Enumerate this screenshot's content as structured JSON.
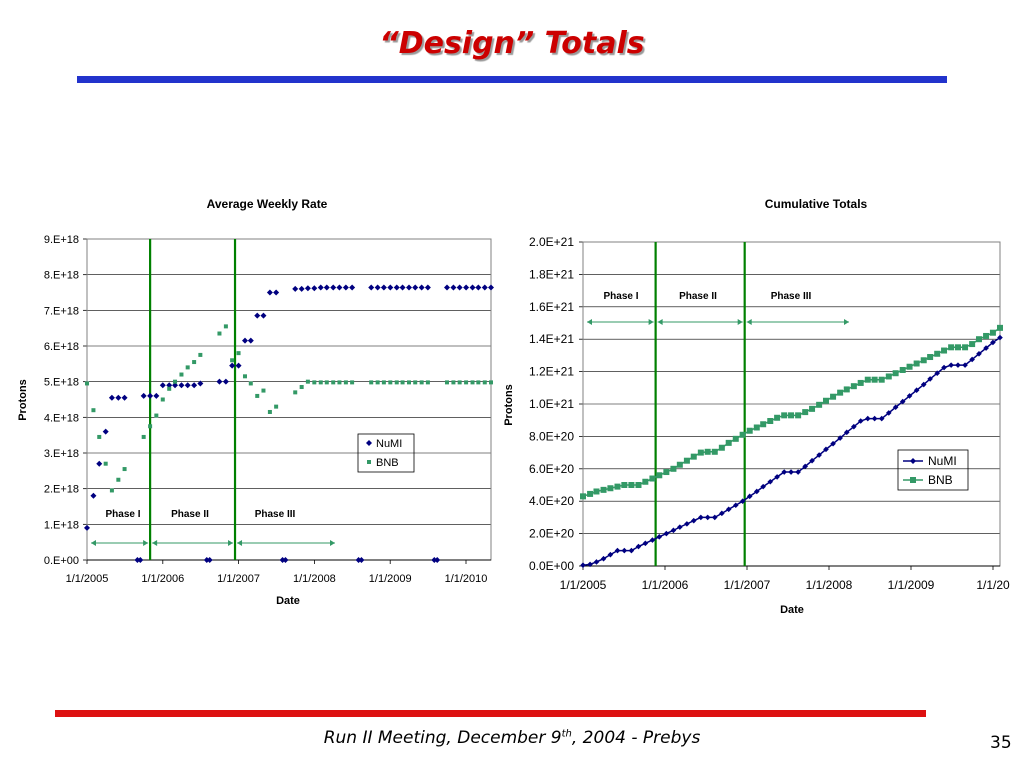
{
  "slide": {
    "title": "“Design”  Totals",
    "footer_prefix": "Run II Meeting, December 9",
    "footer_sup": "th",
    "footer_suffix": ", 2004  - Prebys",
    "page_number": "35"
  },
  "colors": {
    "numi": "#000080",
    "bnb": "#339966",
    "phase_line": "#008000",
    "title": "#cc0000",
    "top_rule": "#2233cc",
    "bottom_rule": "#dd1111"
  },
  "chart_data": [
    {
      "type": "scatter",
      "title": "Average Weekly Rate",
      "xlabel": "Date",
      "ylabel": "Protons",
      "x_tick_labels": [
        "1/1/2005",
        "1/1/2006",
        "1/1/2007",
        "1/1/2008",
        "1/1/2009",
        "1/1/2010"
      ],
      "y_tick_labels": [
        "0.E+00",
        "1.E+18",
        "2.E+18",
        "3.E+18",
        "4.E+18",
        "5.E+18",
        "6.E+18",
        "7.E+18",
        "8.E+18",
        "9.E+18"
      ],
      "ylim": [
        0,
        9e+18
      ],
      "xlim": [
        "2005-01-01",
        "2010-05-01"
      ],
      "grid": "horizontal",
      "legend_position": "center-right",
      "phase_lines": [
        "2005-11-01",
        "2006-12-15"
      ],
      "phase_labels": [
        "Phase I",
        "Phase II",
        "Phase III"
      ],
      "series": [
        {
          "name": "NuMI",
          "marker": "diamond",
          "points": [
            [
              "2005-01-01",
              9e+17
            ],
            [
              "2005-02-01",
              1.8e+18
            ],
            [
              "2005-03-01",
              2.7e+18
            ],
            [
              "2005-04-01",
              3.6e+18
            ],
            [
              "2005-05-01",
              4.55e+18
            ],
            [
              "2005-06-01",
              4.55e+18
            ],
            [
              "2005-07-01",
              4.55e+18
            ],
            [
              "2005-09-01",
              0
            ],
            [
              "2005-09-15",
              0
            ],
            [
              "2005-10-01",
              4.6e+18
            ],
            [
              "2005-11-01",
              4.6e+18
            ],
            [
              "2005-12-01",
              4.6e+18
            ],
            [
              "2006-01-01",
              4.9e+18
            ],
            [
              "2006-02-01",
              4.9e+18
            ],
            [
              "2006-03-01",
              4.9e+18
            ],
            [
              "2006-04-01",
              4.9e+18
            ],
            [
              "2006-05-01",
              4.9e+18
            ],
            [
              "2006-06-01",
              4.9e+18
            ],
            [
              "2006-07-01",
              4.95e+18
            ],
            [
              "2006-08-01",
              0
            ],
            [
              "2006-08-15",
              0
            ],
            [
              "2006-10-01",
              5e+18
            ],
            [
              "2006-11-01",
              5e+18
            ],
            [
              "2006-12-01",
              5.45e+18
            ],
            [
              "2007-01-01",
              5.45e+18
            ],
            [
              "2007-02-01",
              6.15e+18
            ],
            [
              "2007-03-01",
              6.15e+18
            ],
            [
              "2007-04-01",
              6.85e+18
            ],
            [
              "2007-05-01",
              6.85e+18
            ],
            [
              "2007-06-01",
              7.5e+18
            ],
            [
              "2007-07-01",
              7.5e+18
            ],
            [
              "2007-08-01",
              0
            ],
            [
              "2007-08-15",
              0
            ],
            [
              "2007-10-01",
              7.6e+18
            ],
            [
              "2007-11-01",
              7.6e+18
            ],
            [
              "2007-12-01",
              7.62e+18
            ],
            [
              "2008-01-01",
              7.62e+18
            ],
            [
              "2008-02-01",
              7.64e+18
            ],
            [
              "2008-03-01",
              7.64e+18
            ],
            [
              "2008-04-01",
              7.64e+18
            ],
            [
              "2008-05-01",
              7.64e+18
            ],
            [
              "2008-06-01",
              7.64e+18
            ],
            [
              "2008-07-01",
              7.64e+18
            ],
            [
              "2008-08-01",
              0
            ],
            [
              "2008-08-15",
              0
            ],
            [
              "2008-10-01",
              7.64e+18
            ],
            [
              "2008-11-01",
              7.64e+18
            ],
            [
              "2008-12-01",
              7.64e+18
            ],
            [
              "2009-01-01",
              7.64e+18
            ],
            [
              "2009-02-01",
              7.64e+18
            ],
            [
              "2009-03-01",
              7.64e+18
            ],
            [
              "2009-04-01",
              7.64e+18
            ],
            [
              "2009-05-01",
              7.64e+18
            ],
            [
              "2009-06-01",
              7.64e+18
            ],
            [
              "2009-07-01",
              7.64e+18
            ],
            [
              "2009-08-01",
              0
            ],
            [
              "2009-08-15",
              0
            ],
            [
              "2009-10-01",
              7.64e+18
            ],
            [
              "2009-11-01",
              7.64e+18
            ],
            [
              "2009-12-01",
              7.64e+18
            ],
            [
              "2010-01-01",
              7.64e+18
            ],
            [
              "2010-02-01",
              7.64e+18
            ],
            [
              "2010-03-01",
              7.64e+18
            ],
            [
              "2010-04-01",
              7.64e+18
            ],
            [
              "2010-05-01",
              7.64e+18
            ]
          ]
        },
        {
          "name": "BNB",
          "marker": "square",
          "points": [
            [
              "2005-01-01",
              4.95e+18
            ],
            [
              "2005-02-01",
              4.2e+18
            ],
            [
              "2005-03-01",
              3.45e+18
            ],
            [
              "2005-04-01",
              2.7e+18
            ],
            [
              "2005-05-01",
              1.95e+18
            ],
            [
              "2005-06-01",
              2.25e+18
            ],
            [
              "2005-07-01",
              2.55e+18
            ],
            [
              "2005-10-01",
              3.45e+18
            ],
            [
              "2005-11-01",
              3.75e+18
            ],
            [
              "2005-12-01",
              4.05e+18
            ],
            [
              "2006-01-01",
              4.5e+18
            ],
            [
              "2006-02-01",
              4.8e+18
            ],
            [
              "2006-03-01",
              5e+18
            ],
            [
              "2006-04-01",
              5.2e+18
            ],
            [
              "2006-05-01",
              5.4e+18
            ],
            [
              "2006-06-01",
              5.55e+18
            ],
            [
              "2006-07-01",
              5.75e+18
            ],
            [
              "2006-10-01",
              6.35e+18
            ],
            [
              "2006-11-01",
              6.55e+18
            ],
            [
              "2006-12-01",
              5.6e+18
            ],
            [
              "2007-01-01",
              5.8e+18
            ],
            [
              "2007-02-01",
              5.15e+18
            ],
            [
              "2007-03-01",
              4.95e+18
            ],
            [
              "2007-04-01",
              4.6e+18
            ],
            [
              "2007-05-01",
              4.75e+18
            ],
            [
              "2007-06-01",
              4.15e+18
            ],
            [
              "2007-07-01",
              4.3e+18
            ],
            [
              "2007-10-01",
              4.7e+18
            ],
            [
              "2007-11-01",
              4.85e+18
            ],
            [
              "2007-12-01",
              5e+18
            ],
            [
              "2008-01-01",
              4.98e+18
            ],
            [
              "2008-02-01",
              4.98e+18
            ],
            [
              "2008-03-01",
              4.98e+18
            ],
            [
              "2008-04-01",
              4.98e+18
            ],
            [
              "2008-05-01",
              4.98e+18
            ],
            [
              "2008-06-01",
              4.98e+18
            ],
            [
              "2008-07-01",
              4.98e+18
            ],
            [
              "2008-10-01",
              4.98e+18
            ],
            [
              "2008-11-01",
              4.98e+18
            ],
            [
              "2008-12-01",
              4.98e+18
            ],
            [
              "2009-01-01",
              4.98e+18
            ],
            [
              "2009-02-01",
              4.98e+18
            ],
            [
              "2009-03-01",
              4.98e+18
            ],
            [
              "2009-04-01",
              4.98e+18
            ],
            [
              "2009-05-01",
              4.98e+18
            ],
            [
              "2009-06-01",
              4.98e+18
            ],
            [
              "2009-07-01",
              4.98e+18
            ],
            [
              "2009-10-01",
              4.98e+18
            ],
            [
              "2009-11-01",
              4.98e+18
            ],
            [
              "2009-12-01",
              4.98e+18
            ],
            [
              "2010-01-01",
              4.98e+18
            ],
            [
              "2010-02-01",
              4.98e+18
            ],
            [
              "2010-03-01",
              4.98e+18
            ],
            [
              "2010-04-01",
              4.98e+18
            ],
            [
              "2010-05-01",
              4.98e+18
            ]
          ]
        }
      ]
    },
    {
      "type": "line",
      "title": "Cumulative Totals",
      "xlabel": "Date",
      "ylabel": "Protons",
      "x_tick_labels": [
        "1/1/2005",
        "1/1/2006",
        "1/1/2007",
        "1/1/2008",
        "1/1/2009",
        "1/1/20"
      ],
      "y_tick_labels": [
        "0.0E+00",
        "2.0E+20",
        "4.0E+20",
        "6.0E+20",
        "8.0E+20",
        "1.0E+21",
        "1.2E+21",
        "1.4E+21",
        "1.6E+21",
        "1.8E+21",
        "2.0E+21"
      ],
      "ylim": [
        0,
        2e+21
      ],
      "xlim": [
        "2005-01-01",
        "2010-01-01"
      ],
      "grid": "horizontal",
      "legend_position": "right",
      "phase_lines": [
        "2005-11-15",
        "2006-12-10"
      ],
      "phase_labels": [
        "Phase I",
        "Phase II",
        "Phase III"
      ],
      "series": [
        {
          "name": "NuMI",
          "marker": "diamond",
          "x": [
            "2005-01-01",
            "2005-02-01",
            "2005-03-01",
            "2005-04-01",
            "2005-05-01",
            "2005-06-01",
            "2005-07-01",
            "2005-08-01",
            "2005-09-01",
            "2005-10-01",
            "2005-11-01",
            "2005-12-01",
            "2006-01-01",
            "2006-02-01",
            "2006-03-01",
            "2006-04-01",
            "2006-05-01",
            "2006-06-01",
            "2006-07-01",
            "2006-08-01",
            "2006-09-01",
            "2006-10-01",
            "2006-11-01",
            "2006-12-01",
            "2007-01-01",
            "2007-02-01",
            "2007-03-01",
            "2007-04-01",
            "2007-05-01",
            "2007-06-01",
            "2007-07-01",
            "2007-08-01",
            "2007-09-01",
            "2007-10-01",
            "2007-11-01",
            "2007-12-01",
            "2008-01-01",
            "2008-02-01",
            "2008-03-01",
            "2008-04-01",
            "2008-05-01",
            "2008-06-01",
            "2008-07-01",
            "2008-08-01",
            "2008-09-01",
            "2008-10-01",
            "2008-11-01",
            "2008-12-01",
            "2009-01-01",
            "2009-02-01",
            "2009-03-01",
            "2009-04-01",
            "2009-05-01",
            "2009-06-01",
            "2009-07-01",
            "2009-08-01",
            "2009-09-01",
            "2009-10-01",
            "2009-11-01",
            "2009-12-01",
            "2010-01-01"
          ],
          "values": [
            5e+18,
            1e+19,
            2.5e+19,
            4.5e+19,
            7e+19,
            9.5e+19,
            9.5e+19,
            9.5e+19,
            1.2e+20,
            1.4e+20,
            1.6e+20,
            1.8e+20,
            2e+20,
            2.2e+20,
            2.4e+20,
            2.6e+20,
            2.8e+20,
            3e+20,
            3e+20,
            3e+20,
            3.25e+20,
            3.5e+20,
            3.75e+20,
            4e+20,
            4.3e+20,
            4.6e+20,
            4.9e+20,
            5.2e+20,
            5.5e+20,
            5.8e+20,
            5.8e+20,
            5.8e+20,
            6.15e+20,
            6.5e+20,
            6.85e+20,
            7.2e+20,
            7.55e+20,
            7.9e+20,
            8.25e+20,
            8.6e+20,
            8.95e+20,
            9.1e+20,
            9.1e+20,
            9.1e+20,
            9.45e+20,
            9.8e+20,
            1.015e+21,
            1.05e+21,
            1.085e+21,
            1.12e+21,
            1.155e+21,
            1.19e+21,
            1.225e+21,
            1.24e+21,
            1.24e+21,
            1.24e+21,
            1.275e+21,
            1.31e+21,
            1.345e+21,
            1.38e+21,
            1.41e+21
          ]
        },
        {
          "name": "BNB",
          "marker": "square",
          "x": [
            "2005-01-01",
            "2005-02-01",
            "2005-03-01",
            "2005-04-01",
            "2005-05-01",
            "2005-06-01",
            "2005-07-01",
            "2005-08-01",
            "2005-09-01",
            "2005-10-01",
            "2005-11-01",
            "2005-12-01",
            "2006-01-01",
            "2006-02-01",
            "2006-03-01",
            "2006-04-01",
            "2006-05-01",
            "2006-06-01",
            "2006-07-01",
            "2006-08-01",
            "2006-09-01",
            "2006-10-01",
            "2006-11-01",
            "2006-12-01",
            "2007-01-01",
            "2007-02-01",
            "2007-03-01",
            "2007-04-01",
            "2007-05-01",
            "2007-06-01",
            "2007-07-01",
            "2007-08-01",
            "2007-09-01",
            "2007-10-01",
            "2007-11-01",
            "2007-12-01",
            "2008-01-01",
            "2008-02-01",
            "2008-03-01",
            "2008-04-01",
            "2008-05-01",
            "2008-06-01",
            "2008-07-01",
            "2008-08-01",
            "2008-09-01",
            "2008-10-01",
            "2008-11-01",
            "2008-12-01",
            "2009-01-01",
            "2009-02-01",
            "2009-03-01",
            "2009-04-01",
            "2009-05-01",
            "2009-06-01",
            "2009-07-01",
            "2009-08-01",
            "2009-09-01",
            "2009-10-01",
            "2009-11-01",
            "2009-12-01",
            "2010-01-01"
          ],
          "values": [
            4.3e+20,
            4.45e+20,
            4.6e+20,
            4.7e+20,
            4.8e+20,
            4.9e+20,
            5e+20,
            5e+20,
            5e+20,
            5.2e+20,
            5.4e+20,
            5.6e+20,
            5.8e+20,
            6e+20,
            6.25e+20,
            6.5e+20,
            6.75e+20,
            7e+20,
            7.05e+20,
            7.05e+20,
            7.3e+20,
            7.6e+20,
            7.85e+20,
            8.1e+20,
            8.35e+20,
            8.55e+20,
            8.75e+20,
            8.95e+20,
            9.15e+20,
            9.3e+20,
            9.3e+20,
            9.3e+20,
            9.5e+20,
            9.7e+20,
            9.95e+20,
            1.02e+21,
            1.045e+21,
            1.07e+21,
            1.09e+21,
            1.11e+21,
            1.13e+21,
            1.15e+21,
            1.15e+21,
            1.15e+21,
            1.17e+21,
            1.19e+21,
            1.21e+21,
            1.23e+21,
            1.25e+21,
            1.27e+21,
            1.29e+21,
            1.31e+21,
            1.33e+21,
            1.35e+21,
            1.35e+21,
            1.35e+21,
            1.37e+21,
            1.4e+21,
            1.42e+21,
            1.44e+21,
            1.47e+21
          ]
        }
      ]
    }
  ]
}
